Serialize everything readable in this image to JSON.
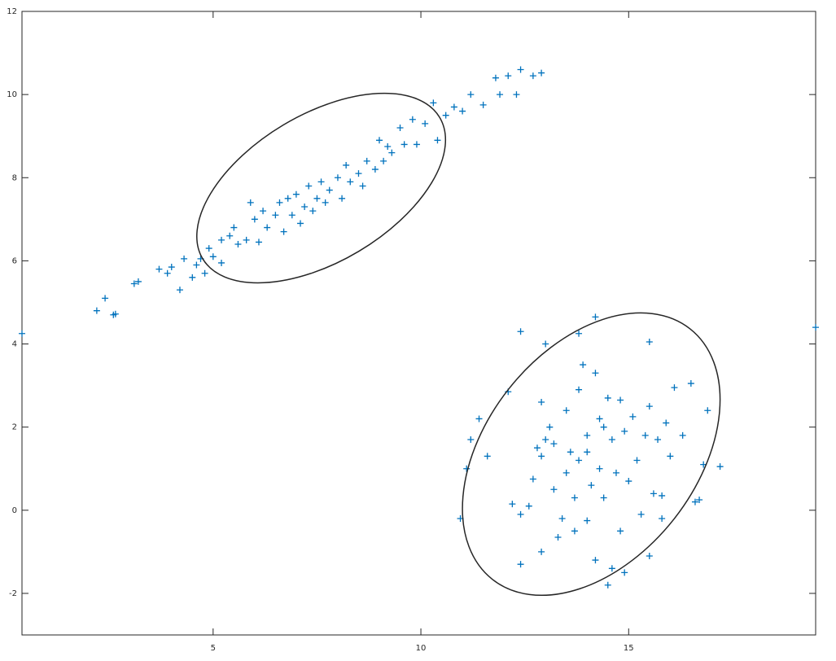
{
  "chart_data": {
    "type": "scatter",
    "xlim": [
      0.4,
      19.5
    ],
    "ylim": [
      -3,
      12
    ],
    "xticks": [
      5,
      10,
      15
    ],
    "yticks": [
      -2,
      0,
      2,
      4,
      6,
      8,
      10,
      12
    ],
    "marker": "+",
    "series": [
      {
        "color": "#0072bd",
        "x": [
          2.2,
          2.4,
          2.6,
          2.65,
          3.1,
          3.2,
          3.7,
          3.9,
          4.0,
          4.2,
          4.3,
          4.5,
          4.6,
          4.7,
          4.8,
          4.9,
          5.0,
          5.2,
          5.2,
          5.4,
          5.5,
          5.6,
          5.8,
          5.9,
          6.0,
          6.1,
          6.2,
          6.3,
          6.5,
          6.6,
          6.7,
          6.8,
          6.9,
          7.0,
          7.1,
          7.2,
          7.3,
          7.4,
          7.5,
          7.6,
          7.7,
          7.8,
          8.0,
          8.1,
          8.2,
          8.3,
          8.5,
          8.6,
          8.7,
          8.9,
          9.0,
          9.1,
          9.2,
          9.3,
          9.5,
          9.6,
          9.8,
          9.9,
          10.1,
          10.3,
          10.4,
          10.6,
          10.8,
          11.0,
          11.2,
          11.5,
          11.8,
          11.9,
          12.1,
          12.3,
          12.4,
          12.7,
          12.9,
          0.4,
          19.5
        ],
        "y": [
          4.8,
          5.1,
          4.7,
          4.72,
          5.45,
          5.5,
          5.8,
          5.7,
          5.85,
          5.3,
          6.05,
          5.6,
          5.9,
          6.05,
          5.7,
          6.3,
          6.1,
          6.5,
          5.95,
          6.6,
          6.8,
          6.4,
          6.5,
          7.4,
          7.0,
          6.45,
          7.2,
          6.8,
          7.1,
          7.4,
          6.7,
          7.5,
          7.1,
          7.6,
          6.9,
          7.3,
          7.8,
          7.2,
          7.5,
          7.9,
          7.4,
          7.7,
          8.0,
          7.5,
          8.3,
          7.9,
          8.1,
          7.8,
          8.4,
          8.2,
          8.9,
          8.4,
          8.75,
          8.6,
          9.2,
          8.8,
          9.4,
          8.8,
          9.3,
          9.8,
          8.9,
          9.5,
          9.7,
          9.6,
          10.0,
          9.75,
          10.4,
          10.0,
          10.45,
          10.0,
          10.6,
          10.45,
          10.52,
          4.25,
          4.4
        ]
      },
      {
        "color": "#0072bd",
        "x": [
          12.4,
          13.0,
          13.8,
          14.2,
          15.5,
          12.1,
          11.4,
          11.2,
          11.1,
          11.6,
          10.95,
          12.2,
          12.4,
          12.4,
          12.9,
          12.6,
          12.7,
          12.8,
          12.9,
          12.9,
          13.1,
          13.2,
          13.2,
          13.3,
          13.4,
          13.5,
          13.6,
          13.7,
          13.7,
          13.8,
          13.8,
          13.9,
          14.0,
          14.0,
          14.1,
          14.2,
          14.2,
          14.3,
          14.3,
          14.4,
          14.5,
          14.5,
          14.6,
          14.6,
          14.7,
          14.8,
          14.8,
          14.9,
          14.9,
          15.0,
          15.1,
          15.2,
          15.3,
          15.4,
          15.5,
          15.5,
          15.6,
          15.7,
          15.8,
          15.9,
          16.0,
          16.1,
          16.3,
          16.5,
          16.6,
          16.7,
          16.9,
          16.8,
          17.2,
          15.8,
          13.0,
          14.0,
          14.4,
          13.5
        ],
        "y": [
          4.3,
          4.0,
          4.25,
          4.65,
          4.05,
          2.85,
          2.2,
          1.7,
          1.0,
          1.3,
          -0.2,
          0.15,
          -0.1,
          -1.3,
          -1.0,
          0.1,
          0.75,
          1.5,
          1.3,
          2.6,
          2.0,
          1.6,
          0.5,
          -0.65,
          -0.2,
          2.4,
          1.4,
          0.3,
          -0.5,
          1.2,
          2.9,
          3.5,
          1.8,
          -0.25,
          0.6,
          -1.2,
          3.3,
          2.2,
          1.0,
          0.3,
          2.7,
          -1.8,
          1.7,
          -1.4,
          0.9,
          2.65,
          -0.5,
          1.9,
          -1.5,
          0.7,
          2.25,
          1.2,
          -0.1,
          1.8,
          2.5,
          -1.1,
          0.4,
          1.7,
          -0.2,
          2.1,
          1.3,
          2.95,
          1.8,
          3.05,
          0.2,
          0.25,
          2.4,
          1.1,
          1.05,
          0.35,
          1.7,
          1.4,
          2.0,
          0.9
        ]
      }
    ],
    "ellipses": [
      {
        "color": "#262626",
        "center": [
          7.6,
          7.75
        ],
        "semi_axes": [
          3.32,
          1.77
        ],
        "angle": 30.8
      },
      {
        "color": "#262626",
        "center": [
          14.1,
          1.35
        ],
        "semi_axes": [
          3.84,
          2.53
        ],
        "angle": 51.7
      }
    ]
  }
}
